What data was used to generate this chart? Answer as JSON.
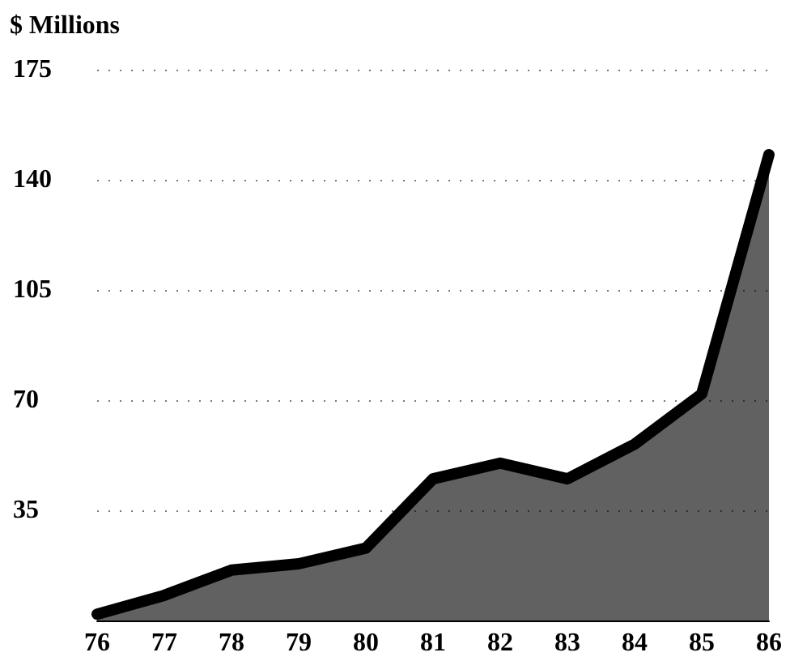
{
  "chart_data": {
    "type": "area",
    "ylabel": "$ Millions",
    "categories": [
      "76",
      "77",
      "78",
      "79",
      "80",
      "81",
      "82",
      "83",
      "84",
      "85",
      "86"
    ],
    "values": [
      2,
      8,
      16,
      18,
      23,
      45,
      50,
      45,
      56,
      72,
      148
    ],
    "color": "#000000",
    "ylim": [
      0,
      175
    ],
    "yticks": [
      35,
      70,
      105,
      140,
      175
    ],
    "grid": "y"
  }
}
